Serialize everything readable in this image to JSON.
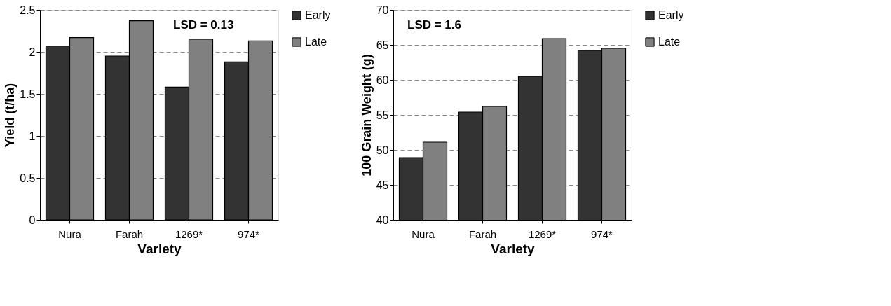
{
  "chart_data": [
    {
      "type": "bar",
      "xlabel": "Variety",
      "ylabel": "Yield (t/ha)",
      "categories": [
        "Nura",
        "Farah",
        "1269*",
        "974*"
      ],
      "series": [
        {
          "name": "Early",
          "color": "#333333",
          "values": [
            2.07,
            1.95,
            1.58,
            1.88
          ]
        },
        {
          "name": "Late",
          "color": "#808080",
          "values": [
            2.17,
            2.37,
            2.15,
            2.13
          ]
        }
      ],
      "ylim": [
        0,
        2.5
      ],
      "yticks": [
        0,
        0.5,
        1,
        1.5,
        2,
        2.5
      ],
      "grid": "y",
      "legend": "right",
      "annotations": [
        "LSD = 0.13"
      ]
    },
    {
      "type": "bar",
      "xlabel": "Variety",
      "ylabel": "100 Grain Weight (g)",
      "categories": [
        "Nura",
        "Farah",
        "1269*",
        "974*"
      ],
      "series": [
        {
          "name": "Early",
          "color": "#333333",
          "values": [
            48.9,
            55.4,
            60.5,
            64.2
          ]
        },
        {
          "name": "Late",
          "color": "#808080",
          "values": [
            51.1,
            56.2,
            65.9,
            64.5
          ]
        }
      ],
      "ylim": [
        40,
        70
      ],
      "yticks": [
        40,
        45,
        50,
        55,
        60,
        65,
        70
      ],
      "grid": "y",
      "legend": "right",
      "annotations": [
        "LSD = 1.6"
      ]
    }
  ]
}
